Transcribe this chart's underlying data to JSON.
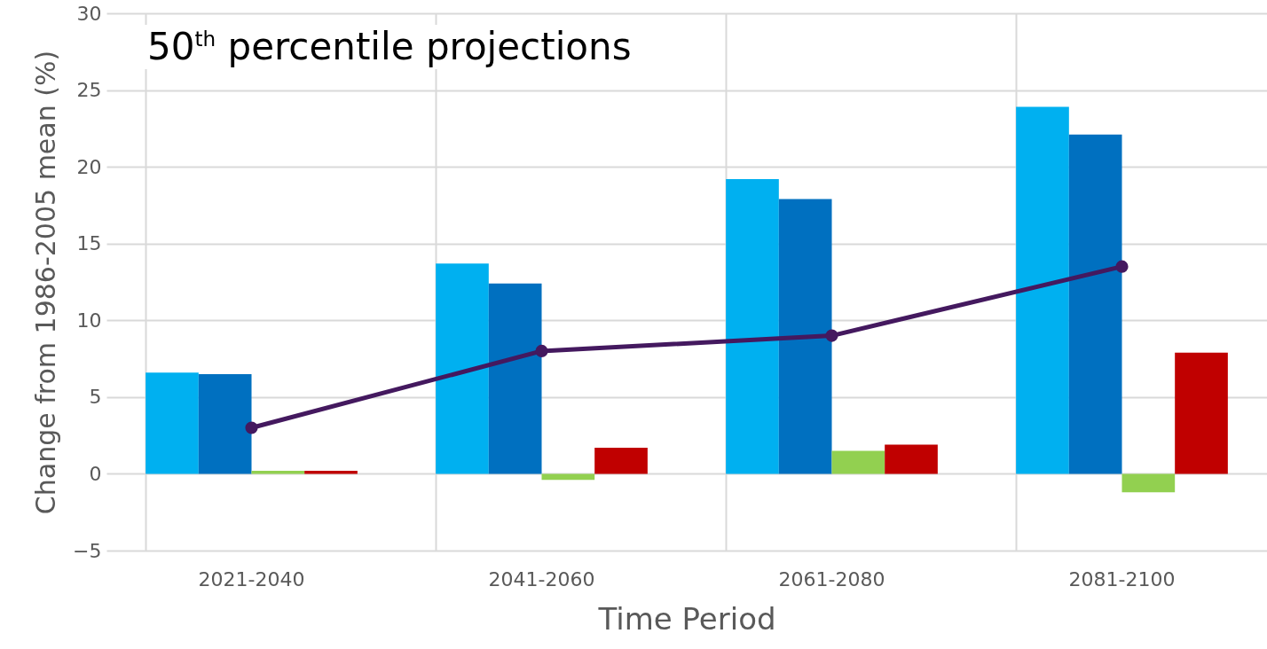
{
  "chart_data": {
    "type": "bar",
    "title": "50$^{th}$ percentile projections",
    "xlabel": "Time Period",
    "ylabel": "Change from 1986-2005 mean (%)",
    "categories": [
      "2021-2040",
      "2041-2060",
      "2061-2080",
      "2081-2100"
    ],
    "series": [
      {
        "color": "#00b0f0",
        "values": [
          6.6,
          13.7,
          19.2,
          23.9
        ]
      },
      {
        "color": "#0070c0",
        "values": [
          6.5,
          12.4,
          17.9,
          22.1
        ]
      },
      {
        "color": "#92d050",
        "values": [
          0.2,
          -0.4,
          1.5,
          -1.2
        ]
      },
      {
        "color": "#c00000",
        "values": [
          0.2,
          1.7,
          1.9,
          7.9
        ]
      },
      {
        "type": "line",
        "color": "#44195f",
        "values": [
          3.0,
          8.0,
          9.0,
          13.5
        ]
      }
    ],
    "ylim": [
      -5,
      30
    ],
    "yticks": [
      -5,
      0,
      5,
      10,
      15,
      20,
      25,
      30
    ],
    "grid": true,
    "marker": "circle"
  }
}
